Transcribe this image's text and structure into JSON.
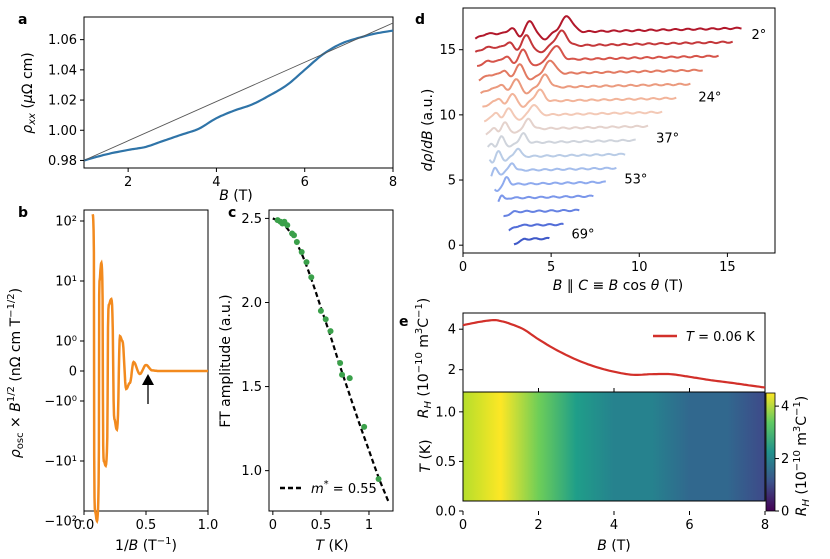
{
  "panels": {
    "a": {
      "label": "a"
    },
    "b": {
      "label": "b"
    },
    "c": {
      "label": "c"
    },
    "d": {
      "label": "d"
    },
    "e": {
      "label": "e"
    }
  },
  "colors": {
    "orange": "#f28a1e",
    "blue_line": "#2f74a8",
    "dark_line": "#0b3d5c",
    "red_line": "#d2302a",
    "green_point": "#3aa04a"
  },
  "chart_data": [
    {
      "id": "a",
      "type": "line",
      "title": "",
      "xlabel": "B (T)",
      "ylabel": "ρxx (μΩ cm)",
      "xlim": [
        1.0,
        8.0
      ],
      "ylim": [
        0.975,
        1.075
      ],
      "xticks": [
        2,
        4,
        6,
        8
      ],
      "yticks": [
        0.98,
        1.0,
        1.02,
        1.04,
        1.06
      ],
      "ytick_labels": [
        "0.98",
        "1.00",
        "1.02",
        "1.04",
        "1.06"
      ],
      "series": [
        {
          "role": "data",
          "x": [
            1.0,
            1.5,
            2.0,
            2.4,
            2.8,
            3.2,
            3.6,
            4.0,
            4.4,
            4.8,
            5.2,
            5.6,
            6.0,
            6.4,
            6.8,
            7.2,
            7.6,
            8.0
          ],
          "y": [
            0.98,
            0.984,
            0.987,
            0.989,
            0.993,
            0.997,
            1.001,
            1.008,
            1.013,
            1.017,
            1.023,
            1.03,
            1.04,
            1.05,
            1.057,
            1.061,
            1.064,
            1.066
          ]
        },
        {
          "role": "linear fit",
          "x": [
            1.0,
            8.0
          ],
          "y": [
            0.98,
            1.071
          ]
        }
      ]
    },
    {
      "id": "b",
      "type": "line",
      "xlabel": "1/B (T⁻¹)",
      "ylabel": "ρosc × B^1/2 (nΩ cm T^-1/2)",
      "xlim": [
        0.0,
        1.0
      ],
      "xticks": [
        0.0,
        0.5,
        1.0
      ],
      "yscale": "symlog",
      "ytick_labels": [
        "10²",
        "10¹",
        "10⁰",
        "0",
        "−10⁰",
        "−10¹",
        "−10²"
      ],
      "annotation": "arrow at 1/B ≈ 0.5",
      "series": [
        {
          "x": [
            0.07,
            0.09,
            0.105,
            0.125,
            0.14,
            0.16,
            0.175,
            0.2,
            0.22,
            0.245,
            0.265,
            0.29,
            0.31,
            0.34,
            0.37,
            0.4,
            0.45,
            0.5,
            0.55,
            0.6,
            0.8,
            1.0
          ],
          "y": [
            130,
            -70,
            -100,
            10,
            20,
            -10,
            -12,
            4,
            5,
            -2,
            -3,
            1.2,
            1.0,
            -0.6,
            -0.4,
            0.3,
            -0.1,
            0.2,
            0.02,
            0.0,
            0.0,
            0.0
          ]
        }
      ]
    },
    {
      "id": "c",
      "type": "scatter",
      "xlabel": "T (K)",
      "ylabel": "FT amplitude (a.u.)",
      "xlim": [
        -0.04,
        1.25
      ],
      "ylim": [
        0.76,
        2.55
      ],
      "xticks": [
        0,
        0.5,
        1
      ],
      "xtick_labels": [
        "0",
        "0.5",
        "1"
      ],
      "yticks": [
        1.0,
        1.5,
        2.0,
        2.5
      ],
      "ytick_labels": [
        "1.0",
        "1.5",
        "2.0",
        "2.5"
      ],
      "legend": "m* = 0.55",
      "legend_position": "bottom-left",
      "points": {
        "x": [
          0.05,
          0.08,
          0.1,
          0.12,
          0.15,
          0.2,
          0.22,
          0.25,
          0.3,
          0.35,
          0.4,
          0.5,
          0.55,
          0.6,
          0.7,
          0.72,
          0.8,
          0.95,
          1.1
        ],
        "y": [
          2.49,
          2.48,
          2.47,
          2.48,
          2.46,
          2.41,
          2.4,
          2.36,
          2.3,
          2.24,
          2.15,
          1.95,
          1.9,
          1.83,
          1.64,
          1.57,
          1.55,
          1.26,
          0.95
        ]
      },
      "fit": {
        "x": [
          0.0,
          0.1,
          0.2,
          0.3,
          0.4,
          0.5,
          0.6,
          0.7,
          0.8,
          0.9,
          1.0,
          1.1,
          1.2
        ],
        "y": [
          2.5,
          2.47,
          2.4,
          2.29,
          2.14,
          1.97,
          1.8,
          1.62,
          1.45,
          1.28,
          1.12,
          0.96,
          0.82
        ]
      }
    },
    {
      "id": "d",
      "type": "line",
      "xlabel": "B ∥ C ≡ B cos θ (T)",
      "ylabel": "dρ/dB (a.u.)",
      "xlim": [
        0,
        17.7
      ],
      "ylim": [
        -0.6,
        18.2
      ],
      "xticks": [
        0,
        5,
        10,
        15
      ],
      "yticks": [
        0,
        5,
        10,
        15
      ],
      "angle_labels": [
        "2°",
        "24°",
        "37°",
        "53°",
        "69°"
      ],
      "series_note": "16 stacked traces from 2° (top, dark red) to 69° (bottom, blue), each offset by about 1.05",
      "offsets": [
        16.2,
        15.15,
        14.1,
        13.05,
        12.0,
        10.95,
        9.9,
        8.85,
        7.8,
        6.75,
        5.7,
        4.65,
        3.6,
        2.55,
        1.5,
        0.45
      ],
      "colors": [
        "#b2182b",
        "#c4373a",
        "#d6544a",
        "#e27a62",
        "#eb9a7e",
        "#f2b49a",
        "#f3c9b6",
        "#e4d2cc",
        "#cfd4dc",
        "#b9cce6",
        "#a4bdec",
        "#8eaaee",
        "#7a96ea",
        "#6682e2",
        "#526dd8",
        "#3f59c8"
      ],
      "x_end": [
        15.8,
        15.3,
        14.5,
        13.6,
        12.9,
        12.1,
        11.3,
        10.5,
        9.8,
        9.2,
        8.7,
        8.1,
        7.4,
        6.6,
        5.7,
        4.9
      ],
      "x_start": [
        0.7,
        0.7,
        0.8,
        0.9,
        1.0,
        1.1,
        1.2,
        1.3,
        1.4,
        1.5,
        1.6,
        1.8,
        2.0,
        2.3,
        2.6,
        2.9
      ]
    },
    {
      "id": "e_top",
      "type": "line",
      "xlabel": "",
      "ylabel": "RH (10^-10 m³C^-1)",
      "xlim": [
        0,
        8
      ],
      "ylim": [
        0.9,
        4.8
      ],
      "yticks": [
        2,
        4
      ],
      "legend": "T = 0.06 K",
      "legend_position": "top-right",
      "series": [
        {
          "name": "T = 0.06 K",
          "x": [
            0,
            0.4,
            0.8,
            1.0,
            1.2,
            1.6,
            2.0,
            2.5,
            3.0,
            3.5,
            4.0,
            4.5,
            5.0,
            5.5,
            6.0,
            6.5,
            7.0,
            7.5,
            8.0
          ],
          "y": [
            4.2,
            4.35,
            4.45,
            4.4,
            4.3,
            4.0,
            3.5,
            2.95,
            2.5,
            2.15,
            1.9,
            1.75,
            1.78,
            1.78,
            1.65,
            1.5,
            1.38,
            1.25,
            1.12
          ]
        }
      ]
    },
    {
      "id": "e_bottom",
      "type": "heatmap",
      "xlabel": "B (T)",
      "ylabel": "T (K)",
      "xlim": [
        0,
        8
      ],
      "ylim": [
        0,
        1.2
      ],
      "xticks": [
        0,
        2,
        4,
        6,
        8
      ],
      "yticks": [
        0.0,
        0.5,
        1.0
      ],
      "ytick_labels": [
        "0.0",
        "0.5",
        "1.0"
      ],
      "colorbar": {
        "label": "RH (10^-10 m³C^-1)",
        "range": [
          0,
          4.5
        ],
        "ticks": [
          0,
          2,
          4
        ],
        "colormap": "viridis"
      },
      "values_by_B": {
        "x": [
          0,
          1,
          2,
          3,
          4,
          5,
          6,
          7,
          8
        ],
        "z": [
          4.2,
          4.4,
          3.4,
          2.5,
          1.9,
          1.8,
          1.6,
          1.3,
          1.1
        ]
      }
    }
  ]
}
